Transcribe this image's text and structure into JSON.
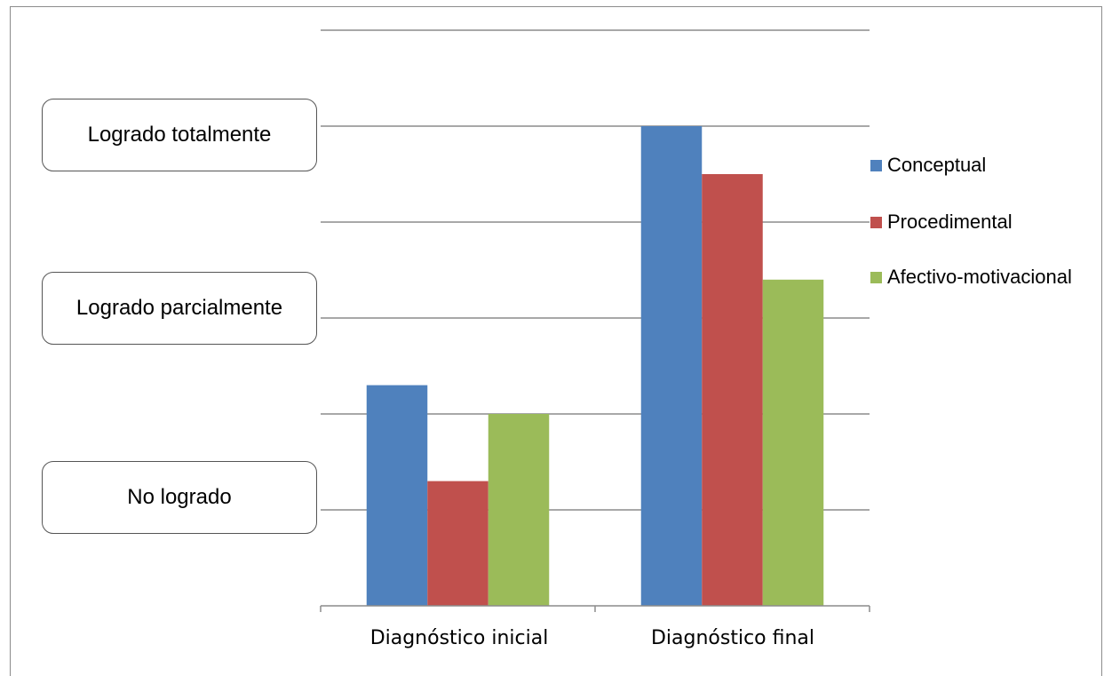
{
  "chart_data": {
    "type": "bar",
    "categories": [
      "Diagnóstico inicial",
      "Diagnóstico final"
    ],
    "series": [
      {
        "name": "Conceptual",
        "values": [
          2.3,
          5.0
        ],
        "color": "#4f81bd"
      },
      {
        "name": "Procedimental",
        "values": [
          1.3,
          4.5
        ],
        "color": "#c0504d"
      },
      {
        "name": "Afectivo-motivacional",
        "values": [
          2.0,
          3.4
        ],
        "color": "#9bbb59"
      }
    ],
    "ylim": [
      0,
      6
    ],
    "grid": true,
    "legend_position": "right",
    "level_labels": {
      "high": "Logrado totalmente",
      "mid": "Logrado parcialmente",
      "low": "No logrado"
    }
  }
}
